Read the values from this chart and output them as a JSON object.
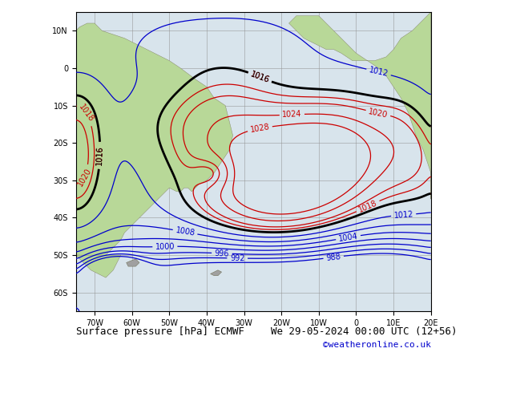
{
  "title": "Surface pressure [hPa] ECMWF",
  "subtitle": "We 29-05-2024 00:00 UTC (12+56)",
  "watermark": "©weatheronline.co.uk",
  "bg_ocean": "#d8e4ec",
  "bg_land": "#b8d898",
  "grid_color": "#909090",
  "contour_low_color": "#0000cc",
  "contour_high_color": "#cc0000",
  "contour_thick_color": "#000000",
  "lon_min": -75,
  "lon_max": 20,
  "lat_min": -65,
  "lat_max": 15,
  "lon_ticks": [
    -70,
    -60,
    -50,
    -40,
    -30,
    -20,
    -10,
    0,
    10,
    20
  ],
  "lat_ticks": [
    -60,
    -50,
    -40,
    -30,
    -20,
    -10,
    0,
    10
  ],
  "pressure_levels_low": [
    988,
    992,
    996,
    1000,
    1004,
    1008,
    1012
  ],
  "pressure_levels_high": [
    1016,
    1018,
    1020,
    1024,
    1028
  ],
  "thick_levels": [
    1016
  ],
  "font_size_title": 9,
  "font_size_tick": 7,
  "font_size_clabel": 7,
  "font_size_watermark": 8,
  "contour_linewidth_thin": 0.9,
  "contour_linewidth_thick": 2.0
}
